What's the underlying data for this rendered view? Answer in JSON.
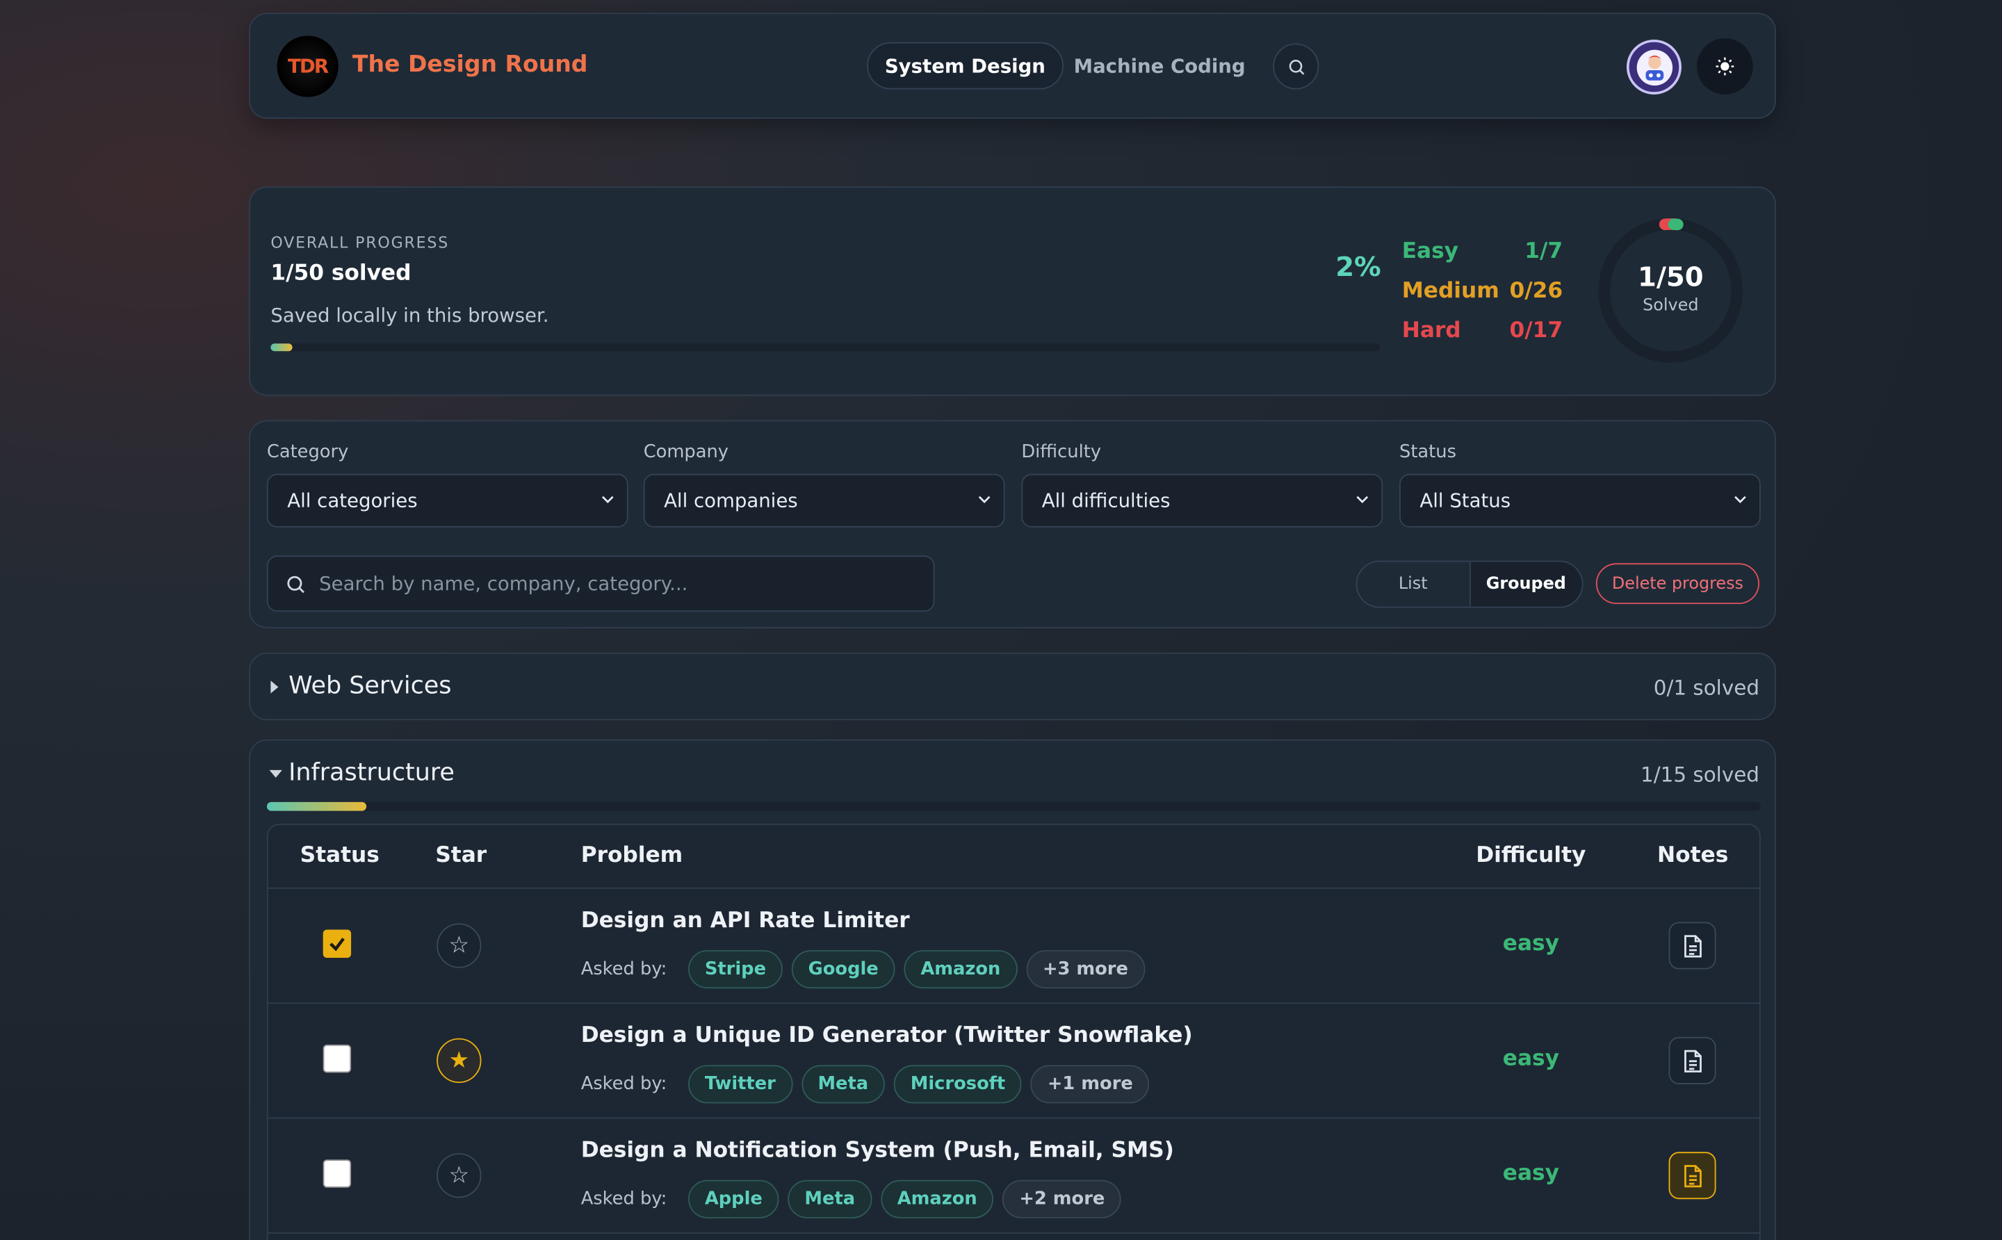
{
  "header": {
    "logo_text": "TDR",
    "brand": "The Design Round",
    "nav": [
      {
        "label": "System Design",
        "active": true
      },
      {
        "label": "Machine Coding",
        "active": false
      }
    ]
  },
  "progress": {
    "label": "OVERALL PROGRESS",
    "solved_text": "1/50 solved",
    "saved_text": "Saved locally in this browser.",
    "percent_text": "2%",
    "percent_value": 2,
    "difficulty": [
      {
        "name": "Easy",
        "count": "1/7",
        "color": "#3bb877"
      },
      {
        "name": "Medium",
        "count": "0/26",
        "color": "#e2a023"
      },
      {
        "name": "Hard",
        "count": "0/17",
        "color": "#e5484d"
      }
    ],
    "ring_value": "1/50",
    "ring_label": "Solved"
  },
  "filters": {
    "category": {
      "label": "Category",
      "value": "All categories"
    },
    "company": {
      "label": "Company",
      "value": "All companies"
    },
    "difficulty": {
      "label": "Difficulty",
      "value": "All difficulties"
    },
    "status": {
      "label": "Status",
      "value": "All Status"
    },
    "search_placeholder": "Search by name, company, category...",
    "view_options": [
      "List",
      "Grouped"
    ],
    "active_view": "Grouped",
    "delete_label": "Delete progress"
  },
  "sections": {
    "web": {
      "title": "Web Services",
      "count": "0/1 solved",
      "expanded": false
    },
    "infra": {
      "title": "Infrastructure",
      "count": "1/15 solved",
      "expanded": true,
      "progress_fraction": 0.067
    }
  },
  "table": {
    "headers": {
      "status": "Status",
      "star": "Star",
      "problem": "Problem",
      "difficulty": "Difficulty",
      "notes": "Notes"
    },
    "asked_by_label": "Asked by:",
    "rows": [
      {
        "title": "Design an API Rate Limiter",
        "checked": true,
        "starred": false,
        "has_note": false,
        "tags": [
          "Stripe",
          "Google",
          "Amazon"
        ],
        "more": "+3 more",
        "difficulty": "easy"
      },
      {
        "title": "Design a Unique ID Generator (Twitter Snowflake)",
        "checked": false,
        "starred": true,
        "has_note": false,
        "tags": [
          "Twitter",
          "Meta",
          "Microsoft"
        ],
        "more": "+1 more",
        "difficulty": "easy"
      },
      {
        "title": "Design a Notification System (Push, Email, SMS)",
        "checked": false,
        "starred": false,
        "has_note": true,
        "tags": [
          "Apple",
          "Meta",
          "Amazon"
        ],
        "more": "+2 more",
        "difficulty": "easy"
      }
    ]
  },
  "colors": {
    "accent": "#5dd6b8",
    "brand": "#f0734a",
    "star": "#e9b00f",
    "danger": "#e0525a"
  }
}
